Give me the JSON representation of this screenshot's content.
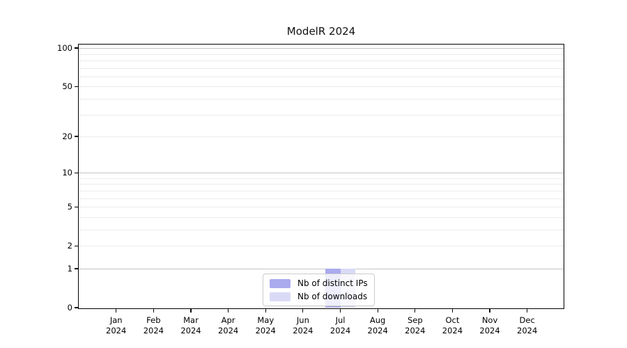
{
  "chart_data": {
    "type": "bar",
    "title": "ModelR 2024",
    "categories": [
      "Jan 2024",
      "Feb 2024",
      "Mar 2024",
      "Apr 2024",
      "May 2024",
      "Jun 2024",
      "Jul 2024",
      "Aug 2024",
      "Sep 2024",
      "Oct 2024",
      "Nov 2024",
      "Dec 2024"
    ],
    "series": [
      {
        "name": "Nb of distinct IPs",
        "color": "#aaaaee",
        "values": [
          0,
          0,
          0,
          0,
          0,
          0,
          1,
          0,
          0,
          0,
          0,
          0
        ]
      },
      {
        "name": "Nb of downloads",
        "color": "#d9daf6",
        "values": [
          0,
          0,
          0,
          0,
          0,
          0,
          1,
          0,
          0,
          0,
          0,
          0
        ]
      }
    ],
    "y_axis": {
      "scale": "log1p",
      "range": [
        0,
        111
      ],
      "tick_labels": [
        100,
        50,
        20,
        10,
        5,
        2,
        1,
        0
      ],
      "major_gridlines": [
        100,
        10,
        1
      ],
      "minor_gridlines": [
        90,
        80,
        70,
        60,
        50,
        40,
        30,
        20,
        9,
        8,
        7,
        6,
        5,
        4,
        3,
        2
      ]
    },
    "legend": {
      "position": "bottom-center"
    },
    "grid": true
  },
  "colors": {
    "axis": "#000000",
    "major_gridline": "#c4c4c4",
    "minor_gridline": "#ececec",
    "legend_border": "#cccccc"
  }
}
